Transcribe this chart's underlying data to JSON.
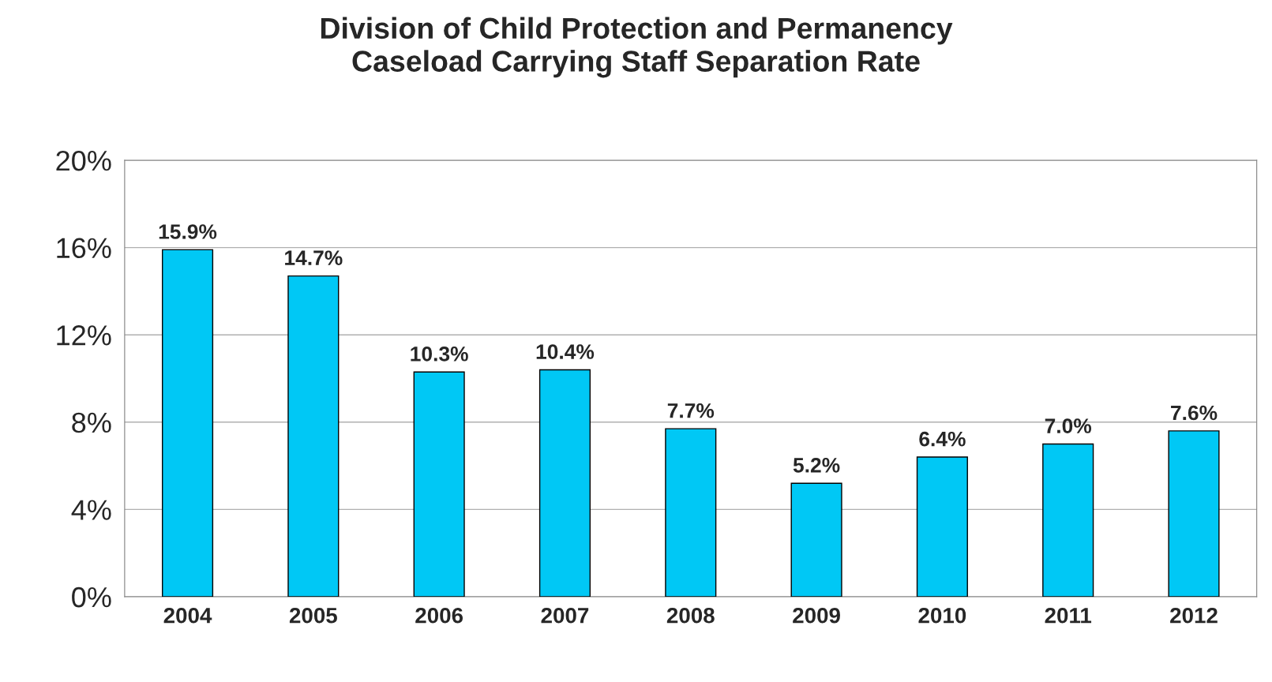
{
  "chart_data": {
    "type": "bar",
    "title": "Division of Child Protection and Permanency\nCaseload Carrying Staff Separation Rate",
    "categories": [
      "2004",
      "2005",
      "2006",
      "2007",
      "2008",
      "2009",
      "2010",
      "2011",
      "2012"
    ],
    "values": [
      15.9,
      14.7,
      10.3,
      10.4,
      7.7,
      5.2,
      6.4,
      7.0,
      7.6
    ],
    "value_labels": [
      "15.9%",
      "14.7%",
      "10.3%",
      "10.4%",
      "7.7%",
      "5.2%",
      "6.4%",
      "7.0%",
      "7.6%"
    ],
    "color": "#00c8f5",
    "ylim": [
      0,
      20
    ],
    "yticks": [
      {
        "value": 0,
        "label": "0%"
      },
      {
        "value": 4,
        "label": "4%"
      },
      {
        "value": 8,
        "label": "8%"
      },
      {
        "value": 12,
        "label": "12%"
      },
      {
        "value": 16,
        "label": "16%"
      },
      {
        "value": 20,
        "label": "20%"
      }
    ],
    "grid": "y"
  }
}
